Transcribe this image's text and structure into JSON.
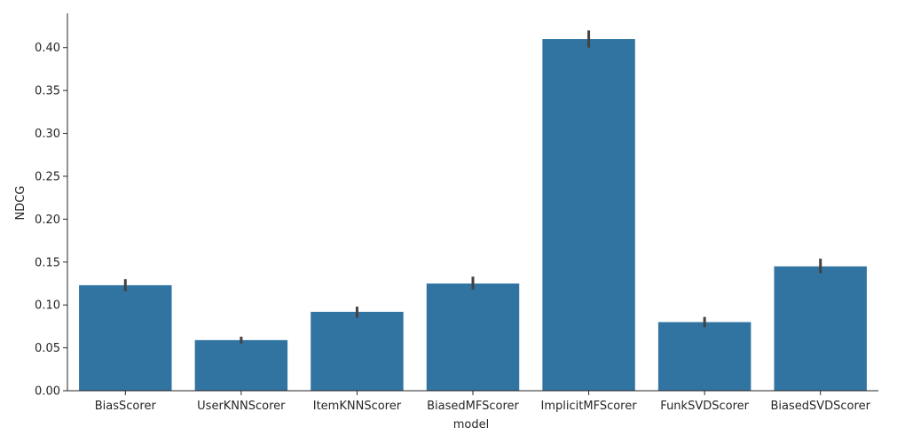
{
  "chart_data": {
    "type": "bar",
    "categories": [
      "BiasScorer",
      "UserKNNScorer",
      "ItemKNNScorer",
      "BiasedMFScorer",
      "ImplicitMFScorer",
      "FunkSVDScorer",
      "BiasedSVDScorer"
    ],
    "values": [
      0.123,
      0.059,
      0.092,
      0.125,
      0.41,
      0.08,
      0.145
    ],
    "error_low": [
      0.116,
      0.055,
      0.085,
      0.118,
      0.4,
      0.074,
      0.137
    ],
    "error_high": [
      0.13,
      0.063,
      0.098,
      0.133,
      0.42,
      0.086,
      0.154
    ],
    "xlabel": "model",
    "ylabel": "NDCG",
    "ylim": [
      0,
      0.44
    ],
    "yticks": [
      "0.00",
      "0.05",
      "0.10",
      "0.15",
      "0.20",
      "0.25",
      "0.30",
      "0.35",
      "0.40"
    ],
    "grid": false,
    "bar_color": "#3274a1",
    "errorbar_color": "#424242"
  }
}
